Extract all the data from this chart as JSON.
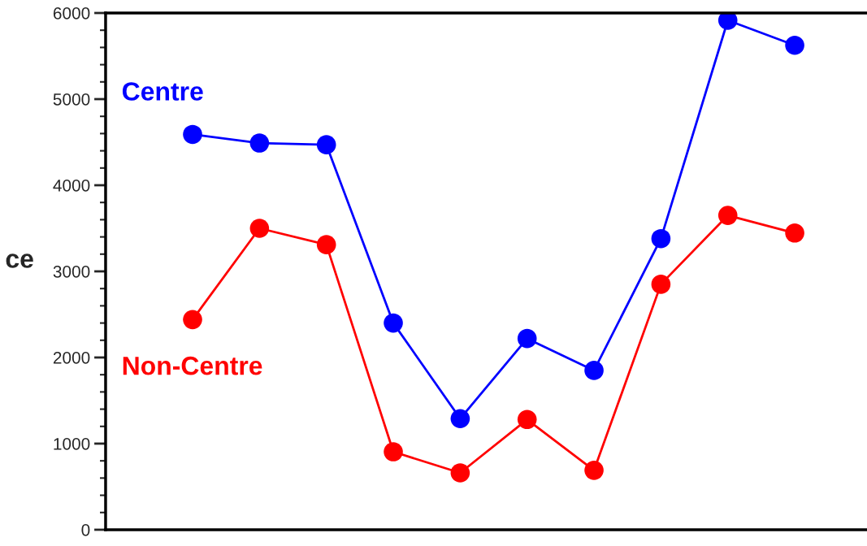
{
  "chart_data": {
    "type": "line",
    "ylabel": "ce",
    "categories": [
      null,
      null,
      null,
      null,
      null,
      null,
      null,
      null,
      null,
      null
    ],
    "series": [
      {
        "name": "Centre",
        "color": "#0000ff",
        "values": [
          4590,
          4490,
          4470,
          2400,
          1290,
          2220,
          1850,
          3380,
          5915,
          5625
        ]
      },
      {
        "name": "Non-Centre",
        "color": "#ff0000",
        "values": [
          2440,
          3500,
          3310,
          905,
          660,
          1280,
          690,
          2850,
          3650,
          3445
        ]
      }
    ],
    "ylim": [
      0,
      6000
    ],
    "yticks": [
      0,
      1000,
      2000,
      3000,
      4000,
      5000,
      6000
    ],
    "grid": false,
    "legend": false,
    "marker": "circle",
    "line_style": "solid",
    "tick_labels": "y"
  }
}
